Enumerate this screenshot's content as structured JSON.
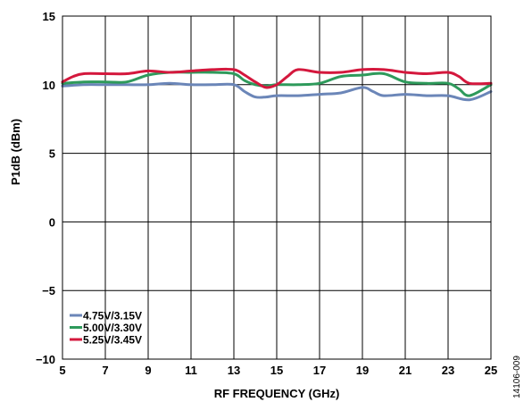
{
  "chart_data": {
    "type": "line",
    "xlabel": "RF FREQUENCY (GHz)",
    "ylabel": "P1dB (dBm)",
    "xlim": [
      5,
      25
    ],
    "ylim": [
      -10,
      15
    ],
    "x_ticks": [
      5,
      7,
      9,
      11,
      13,
      15,
      17,
      19,
      21,
      23,
      25
    ],
    "y_ticks": [
      -10,
      -5,
      0,
      5,
      10,
      15
    ],
    "y_tick_labels": [
      "−10",
      "−5",
      "0",
      "5",
      "10",
      "15"
    ],
    "grid": true,
    "legend_position": "bottom-left",
    "figure_id": "14106-009",
    "series": [
      {
        "name": "4.75V/3.15V",
        "color": "#6b86b8",
        "x": [
          5,
          6,
          7,
          8,
          9,
          10,
          11,
          12,
          13,
          13.5,
          14,
          14.5,
          15,
          16,
          17,
          18,
          19,
          19.5,
          20,
          21,
          22,
          23,
          24,
          25
        ],
        "y": [
          9.9,
          10.0,
          10.0,
          10.0,
          10.0,
          10.1,
          10.0,
          10.0,
          10.0,
          9.5,
          9.1,
          9.1,
          9.2,
          9.2,
          9.3,
          9.4,
          9.8,
          9.5,
          9.2,
          9.3,
          9.2,
          9.2,
          8.9,
          9.5
        ]
      },
      {
        "name": "5.00V/3.30V",
        "color": "#2e9a5b",
        "x": [
          5,
          6,
          7,
          8,
          9,
          10,
          11,
          12,
          13,
          13.5,
          14,
          14.5,
          15,
          16,
          17,
          18,
          19,
          20,
          21,
          22,
          23,
          23.5,
          24,
          25
        ],
        "y": [
          10.1,
          10.2,
          10.2,
          10.2,
          10.7,
          10.9,
          10.9,
          10.9,
          10.8,
          10.3,
          10.0,
          9.9,
          10.0,
          10.0,
          10.1,
          10.6,
          10.7,
          10.8,
          10.2,
          10.1,
          10.1,
          9.7,
          9.2,
          10.0
        ]
      },
      {
        "name": "5.25V/3.45V",
        "color": "#d4183d",
        "x": [
          5,
          5.5,
          6,
          7,
          8,
          9,
          10,
          11,
          12,
          13,
          13.5,
          14,
          14.5,
          15,
          15.5,
          16,
          17,
          18,
          19,
          20,
          21,
          22,
          23,
          23.5,
          24,
          25
        ],
        "y": [
          10.2,
          10.6,
          10.8,
          10.8,
          10.8,
          11.0,
          10.9,
          11.0,
          11.1,
          11.1,
          10.7,
          10.2,
          9.8,
          10.0,
          10.6,
          11.1,
          10.9,
          10.9,
          11.1,
          11.1,
          10.9,
          10.8,
          10.9,
          10.6,
          10.1,
          10.1
        ]
      }
    ]
  }
}
